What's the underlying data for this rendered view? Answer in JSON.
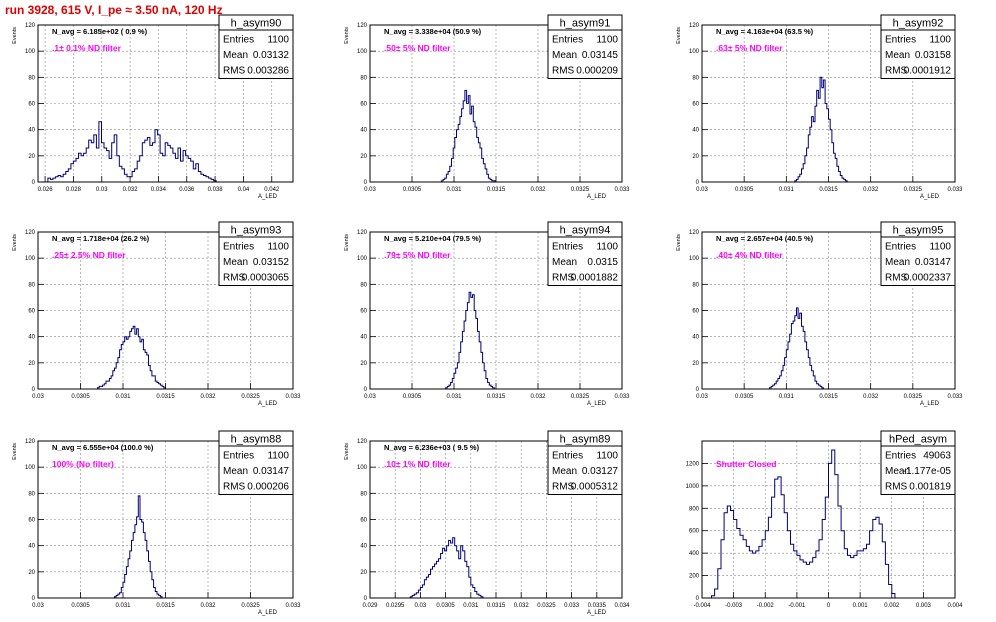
{
  "page": {
    "title": "run 3928,   615 V, I_pe ≈ 3.50 nA, 120 Hz"
  },
  "stats_labels": {
    "entries": "Entries",
    "mean": "Mean",
    "rms": "RMS"
  },
  "colors": {
    "histogram_line": "#00007a",
    "title_red": "#e00000",
    "annotation_magenta": "#ff00ff",
    "grid": "#888888",
    "frame": "#000000"
  },
  "chart_data": [
    {
      "type": "histogram",
      "name": "h_asym90",
      "n_avg_label": "N_avg = 6.185e+02 ( 0.9 %)",
      "annotation": ".1± 0.1% ND filter",
      "ylabel": "Events",
      "xlabel": "A_LED",
      "entries": "1100",
      "mean": "0.03132",
      "rms": "0.003286",
      "grid": true,
      "xlim": [
        0.0255,
        0.0435
      ],
      "ylim": [
        0,
        120
      ],
      "xticks": [
        0.026,
        0.028,
        0.03,
        0.032,
        0.034,
        0.036,
        0.038,
        0.04,
        0.042
      ],
      "xtick_labels": [
        "0.026",
        "0.028",
        "0.03",
        "0.032",
        "0.034",
        "0.036",
        "0.038",
        "0.04",
        "0.042"
      ],
      "yticks": [
        0,
        20,
        40,
        60,
        80,
        100,
        120
      ],
      "bin_start": 0.0262,
      "bin_width": 0.00018,
      "values": [
        3,
        2,
        3,
        4,
        5,
        4,
        6,
        8,
        10,
        14,
        16,
        18,
        22,
        20,
        22,
        26,
        32,
        30,
        36,
        26,
        46,
        30,
        26,
        24,
        18,
        30,
        36,
        20,
        12,
        10,
        6,
        4,
        4,
        8,
        10,
        16,
        20,
        30,
        32,
        34,
        28,
        30,
        40,
        36,
        22,
        20,
        30,
        28,
        26,
        22,
        18,
        26,
        16,
        24,
        20,
        18,
        16,
        10,
        14,
        8,
        6,
        5,
        4,
        3,
        2,
        1
      ]
    },
    {
      "type": "histogram",
      "name": "h_asym91",
      "n_avg_label": "N_avg = 3.338e+04 (50.9 %)",
      "annotation": ".50± 5% ND filter",
      "ylabel": "Events",
      "xlabel": "A_LED",
      "entries": "1100",
      "mean": "0.03145",
      "rms": "0.000209",
      "grid": true,
      "xlim": [
        0.03,
        0.033
      ],
      "ylim": [
        0,
        120
      ],
      "xticks": [
        0.03,
        0.0305,
        0.031,
        0.0315,
        0.032,
        0.0325,
        0.033
      ],
      "xtick_labels": [
        "0.03",
        "0.0305",
        "0.031",
        "0.0315",
        "0.032",
        "0.0325",
        "0.033"
      ],
      "yticks": [
        0,
        20,
        40,
        60,
        80,
        100,
        120
      ],
      "bin_start": 0.03085,
      "bin_width": 2e-05,
      "values": [
        1,
        2,
        3,
        6,
        8,
        12,
        18,
        26,
        34,
        40,
        44,
        50,
        56,
        62,
        70,
        60,
        66,
        52,
        58,
        46,
        42,
        34,
        30,
        26,
        18,
        14,
        10,
        6,
        3,
        2,
        1,
        1
      ]
    },
    {
      "type": "histogram",
      "name": "h_asym92",
      "n_avg_label": "N_avg = 4.163e+04 (63.5 %)",
      "annotation": ".63± 5% ND filter",
      "ylabel": "Events",
      "xlabel": "A_LED",
      "entries": "1100",
      "mean": "0.03158",
      "rms": "0.0001912",
      "grid": true,
      "xlim": [
        0.03,
        0.033
      ],
      "ylim": [
        0,
        120
      ],
      "xticks": [
        0.03,
        0.0305,
        0.031,
        0.0315,
        0.032,
        0.0325,
        0.033
      ],
      "xtick_labels": [
        "0.03",
        "0.0305",
        "0.031",
        "0.0315",
        "0.032",
        "0.0325",
        "0.033"
      ],
      "yticks": [
        0,
        20,
        40,
        60,
        80,
        100,
        120
      ],
      "bin_start": 0.0311,
      "bin_width": 2e-05,
      "values": [
        1,
        2,
        4,
        6,
        10,
        14,
        20,
        26,
        36,
        42,
        50,
        46,
        58,
        70,
        64,
        80,
        72,
        78,
        60,
        56,
        48,
        40,
        30,
        22,
        18,
        12,
        8,
        5,
        3,
        2,
        1
      ]
    },
    {
      "type": "histogram",
      "name": "h_asym93",
      "n_avg_label": "N_avg = 1.718e+04 (26.2 %)",
      "annotation": ".25± 2.5% ND filter",
      "ylabel": "Events",
      "xlabel": "A_LED",
      "entries": "1100",
      "mean": "0.03152",
      "rms": "0.0003065",
      "grid": true,
      "xlim": [
        0.03,
        0.033
      ],
      "ylim": [
        0,
        120
      ],
      "xticks": [
        0.03,
        0.0305,
        0.031,
        0.0315,
        0.032,
        0.0325,
        0.033
      ],
      "xtick_labels": [
        "0.03",
        "0.0305",
        "0.031",
        "0.0315",
        "0.032",
        "0.0325",
        "0.033"
      ],
      "yticks": [
        0,
        20,
        40,
        60,
        80,
        100,
        120
      ],
      "bin_start": 0.0307,
      "bin_width": 2e-05,
      "values": [
        1,
        2,
        2,
        3,
        4,
        6,
        6,
        8,
        10,
        14,
        16,
        20,
        24,
        30,
        34,
        36,
        40,
        38,
        40,
        44,
        46,
        48,
        42,
        46,
        40,
        36,
        38,
        30,
        28,
        26,
        18,
        14,
        10,
        10,
        6,
        5,
        4,
        3,
        2,
        1
      ]
    },
    {
      "type": "histogram",
      "name": "h_asym94",
      "n_avg_label": "N_avg = 5.210e+04 (79.5 %)",
      "annotation": ".79± 5% ND filter",
      "ylabel": "Events",
      "xlabel": "A_LED",
      "entries": "1100",
      "mean": "0.0315",
      "rms": "0.0001882",
      "grid": true,
      "xlim": [
        0.03,
        0.033
      ],
      "ylim": [
        0,
        120
      ],
      "xticks": [
        0.03,
        0.0305,
        0.031,
        0.0315,
        0.032,
        0.0325,
        0.033
      ],
      "xtick_labels": [
        "0.03",
        "0.0305",
        "0.031",
        "0.0315",
        "0.032",
        "0.0325",
        "0.033"
      ],
      "yticks": [
        0,
        20,
        40,
        60,
        80,
        100,
        120
      ],
      "bin_start": 0.0309,
      "bin_width": 2e-05,
      "values": [
        1,
        2,
        3,
        5,
        8,
        12,
        16,
        20,
        28,
        36,
        44,
        52,
        60,
        66,
        74,
        70,
        72,
        60,
        54,
        44,
        36,
        28,
        20,
        14,
        8,
        5,
        3,
        2,
        1
      ]
    },
    {
      "type": "histogram",
      "name": "h_asym95",
      "n_avg_label": "N_avg = 2.657e+04 (40.5 %)",
      "annotation": ".40± 4% ND filter",
      "ylabel": "Events",
      "xlabel": "A_LED",
      "entries": "1100",
      "mean": "0.03147",
      "rms": "0.0002337",
      "grid": true,
      "xlim": [
        0.03,
        0.033
      ],
      "ylim": [
        0,
        120
      ],
      "xticks": [
        0.03,
        0.0305,
        0.031,
        0.0315,
        0.032,
        0.0325,
        0.033
      ],
      "xtick_labels": [
        "0.03",
        "0.0305",
        "0.031",
        "0.0315",
        "0.032",
        "0.0325",
        "0.033"
      ],
      "yticks": [
        0,
        20,
        40,
        60,
        80,
        100,
        120
      ],
      "bin_start": 0.0308,
      "bin_width": 2e-05,
      "values": [
        1,
        2,
        3,
        4,
        6,
        8,
        10,
        14,
        18,
        24,
        30,
        36,
        42,
        50,
        52,
        56,
        62,
        54,
        58,
        48,
        44,
        36,
        30,
        24,
        18,
        14,
        10,
        6,
        4,
        3,
        2,
        1
      ]
    },
    {
      "type": "histogram",
      "name": "h_asym88",
      "n_avg_label": "N_avg = 6.555e+04 (100.0 %)",
      "annotation": "100% (No filter)",
      "ylabel": "Events",
      "xlabel": "A_LED",
      "entries": "1100",
      "mean": "0.03147",
      "rms": "0.000206",
      "grid": true,
      "xlim": [
        0.03,
        0.033
      ],
      "ylim": [
        0,
        120
      ],
      "xticks": [
        0.03,
        0.0305,
        0.031,
        0.0315,
        0.032,
        0.0325,
        0.033
      ],
      "xtick_labels": [
        "0.03",
        "0.0305",
        "0.031",
        "0.0315",
        "0.032",
        "0.0325",
        "0.033"
      ],
      "yticks": [
        0,
        20,
        40,
        60,
        80,
        100,
        120
      ],
      "bin_start": 0.0309,
      "bin_width": 2e-05,
      "values": [
        1,
        2,
        3,
        4,
        8,
        12,
        18,
        24,
        30,
        36,
        44,
        50,
        56,
        62,
        78,
        60,
        58,
        50,
        44,
        36,
        28,
        20,
        14,
        8,
        5,
        3,
        2,
        1
      ]
    },
    {
      "type": "histogram",
      "name": "h_asym89",
      "n_avg_label": "N_avg = 6.236e+03 ( 9.5 %)",
      "annotation": ".10± 1% ND filter",
      "ylabel": "Events",
      "xlabel": "A_LED",
      "entries": "1100",
      "mean": "0.03127",
      "rms": "0.0005312",
      "grid": true,
      "xlim": [
        0.029,
        0.034
      ],
      "ylim": [
        0,
        120
      ],
      "xticks": [
        0.029,
        0.0295,
        0.03,
        0.0305,
        0.031,
        0.0315,
        0.032,
        0.0325,
        0.033,
        0.0335,
        0.034
      ],
      "xtick_labels": [
        "0.029",
        "0.0295",
        "0.03",
        "0.0305",
        "0.031",
        "0.0315",
        "0.032",
        "0.0325",
        "0.033",
        "0.0335",
        "0.034"
      ],
      "yticks": [
        0,
        20,
        40,
        60,
        80,
        100,
        120
      ],
      "bin_start": 0.0298,
      "bin_width": 4e-05,
      "values": [
        1,
        2,
        3,
        4,
        6,
        8,
        10,
        14,
        16,
        18,
        22,
        24,
        26,
        28,
        30,
        34,
        38,
        36,
        40,
        44,
        42,
        46,
        40,
        36,
        30,
        40,
        36,
        28,
        24,
        16,
        10,
        8,
        5,
        3,
        2,
        1
      ]
    },
    {
      "type": "histogram",
      "name": "hPed_asym",
      "n_avg_label": "",
      "annotation": "Shutter Closed",
      "ylabel": "",
      "xlabel": "",
      "entries": "49063",
      "mean": "-1.177e-05",
      "rms": "0.001819",
      "grid": true,
      "xlim": [
        -0.004,
        0.004
      ],
      "ylim": [
        0,
        1400
      ],
      "xticks": [
        -0.004,
        -0.003,
        -0.002,
        -0.001,
        0,
        0.001,
        0.002,
        0.003,
        0.004
      ],
      "xtick_labels": [
        "-0.004",
        "-0.003",
        "-0.002",
        "-0.001",
        "0",
        "0.001",
        "0.002",
        "0.003",
        "0.004"
      ],
      "yticks": [
        0,
        200,
        400,
        600,
        800,
        1000,
        1200
      ],
      "bin_start": -0.0037,
      "bin_width": 0.0001,
      "values": [
        20,
        80,
        260,
        520,
        760,
        820,
        780,
        700,
        620,
        560,
        520,
        460,
        420,
        400,
        420,
        460,
        520,
        600,
        720,
        900,
        1060,
        1080,
        920,
        760,
        600,
        480,
        420,
        380,
        340,
        320,
        300,
        320,
        360,
        420,
        520,
        700,
        900,
        1200,
        1320,
        1100,
        820,
        600,
        440,
        380,
        360,
        380,
        420,
        420,
        440,
        480,
        600,
        700,
        720,
        660,
        500,
        300,
        120,
        40
      ]
    }
  ]
}
